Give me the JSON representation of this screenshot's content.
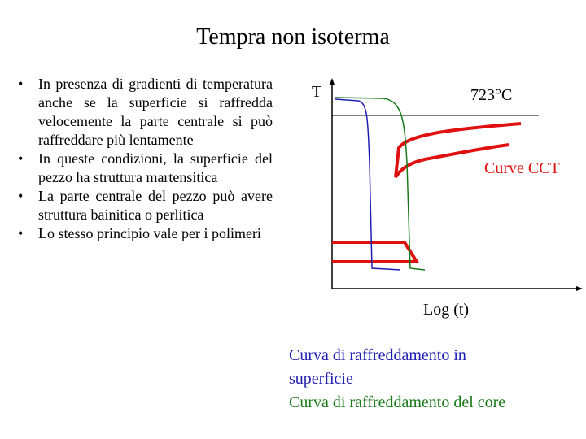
{
  "header": {
    "title": "Tempra non isoterma"
  },
  "bullets": [
    "In presenza di gradienti di temperatura anche se la superficie si raffredda velocemente la parte centrale si può raffreddare più lentamente",
    "In queste condizioni, la superficie del pezzo ha struttura martensitica",
    "La parte centrale del pezzo può avere struttura bainitica o perlitica",
    "Lo stesso principio vale per i polimeri"
  ],
  "diagram": {
    "y_axis_label": "T",
    "x_axis_label": "Log (t)",
    "temperature_label": "723°C",
    "curves_label": "Curve CCT",
    "legend": [
      {
        "label": "Curva di raffreddamento in superficie",
        "color": "#1f1fb4"
      },
      {
        "label": "Curva di raffreddamento del core",
        "color": "#1a7a1a"
      }
    ]
  }
}
